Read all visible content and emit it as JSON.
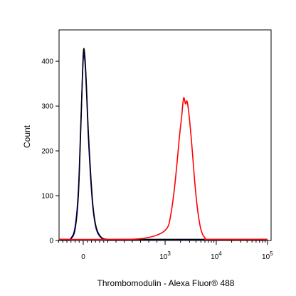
{
  "chart_data": {
    "type": "line",
    "xlabel": "Thrombomodulin - Alexa Fluor® 488",
    "ylabel": "Count",
    "ylim": [
      0,
      470
    ],
    "x_axis_scale": "biexponential",
    "x_ticks": [
      {
        "label": "0",
        "sup": ""
      },
      {
        "label": "10",
        "sup": "3"
      },
      {
        "label": "10",
        "sup": "4"
      },
      {
        "label": "10",
        "sup": "5"
      }
    ],
    "y_ticks": [
      0,
      100,
      200,
      300,
      400
    ],
    "grid": false,
    "legend": "none",
    "series": [
      {
        "color": "#0000ff",
        "x": [
          -300,
          -200,
          -150,
          -100,
          -60,
          -30,
          0,
          20,
          40,
          60,
          90,
          120,
          160,
          220,
          300,
          450,
          700,
          1500,
          100000
        ],
        "y": [
          0,
          0,
          5,
          30,
          110,
          260,
          405,
          400,
          330,
          240,
          140,
          70,
          25,
          6,
          2,
          0,
          0,
          0,
          0
        ]
      },
      {
        "color": "#000000",
        "x": [
          -300,
          -200,
          -150,
          -100,
          -60,
          -30,
          0,
          20,
          40,
          60,
          90,
          120,
          160,
          220,
          300,
          450,
          700,
          1500,
          100000
        ],
        "y": [
          0,
          0,
          4,
          25,
          100,
          250,
          415,
          410,
          340,
          250,
          150,
          75,
          28,
          7,
          2,
          0,
          0,
          0,
          0
        ]
      },
      {
        "color": "#ff0000",
        "x": [
          -300,
          300,
          500,
          700,
          900,
          1100,
          1300,
          1500,
          1700,
          1900,
          2100,
          2300,
          2500,
          2700,
          3000,
          3400,
          3800,
          4300,
          5000,
          6000,
          8000,
          100000
        ],
        "y": [
          0,
          0,
          1,
          4,
          12,
          28,
          60,
          110,
          170,
          230,
          275,
          318,
          305,
          310,
          270,
          200,
          130,
          70,
          25,
          6,
          1,
          0
        ]
      }
    ]
  }
}
